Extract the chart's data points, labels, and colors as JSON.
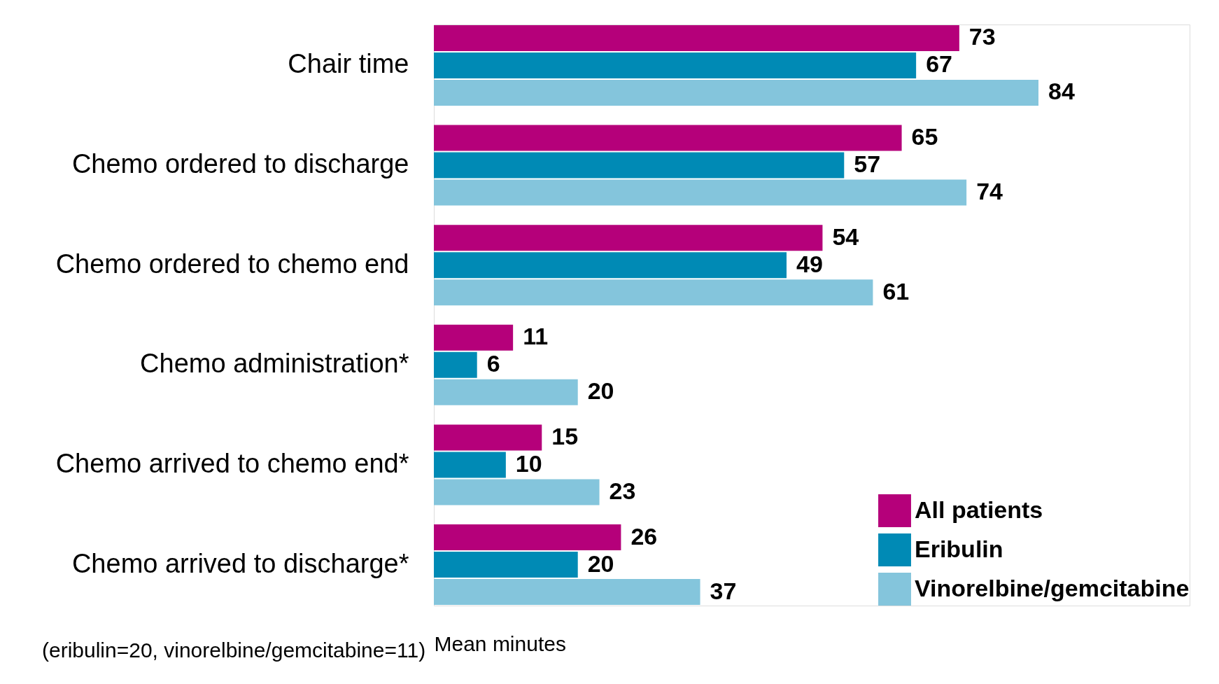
{
  "chart_data": {
    "type": "bar",
    "orientation": "horizontal",
    "xlabel": "Mean minutes",
    "categories": [
      "Chair time",
      "Chemo ordered to discharge",
      "Chemo ordered to chemo end",
      "Chemo administration*",
      "Chemo arrived to chemo end*",
      "Chemo arrived to discharge*"
    ],
    "series": [
      {
        "name": "All patients",
        "color": "#b5007a",
        "values": [
          73,
          65,
          54,
          11,
          15,
          26
        ]
      },
      {
        "name": "Eribulin",
        "color": "#008ab5",
        "values": [
          67,
          57,
          49,
          6,
          10,
          20
        ]
      },
      {
        "name": "Vinorelbine/gemcitabine",
        "color": "#84c5dc",
        "values": [
          84,
          74,
          61,
          20,
          23,
          37
        ]
      }
    ],
    "xlim": [
      0,
      105
    ],
    "data_labels": true,
    "legend": "bottom right",
    "grid": false,
    "annotations": [
      "(eribulin=20, vinorelbine/gemcitabine=11)"
    ]
  }
}
